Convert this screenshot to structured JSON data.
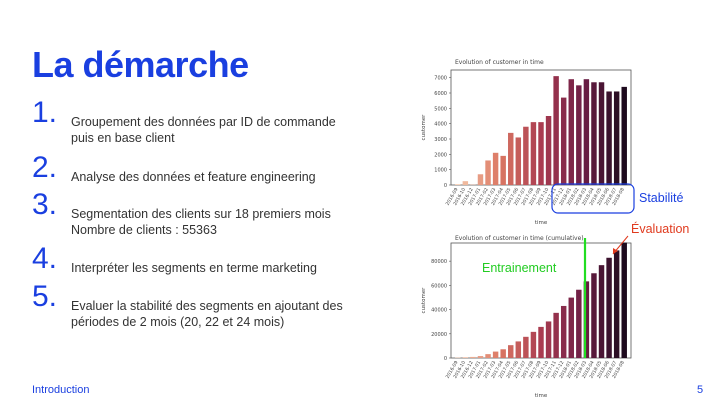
{
  "slide": {
    "title": "La démarche",
    "items": [
      {
        "num": "1.",
        "lines": [
          "Groupement des données par ID de commande",
          "puis en base client"
        ]
      },
      {
        "num": "2.",
        "lines": [
          "Analyse des données et feature engineering"
        ]
      },
      {
        "num": "3.",
        "lines": [
          "Segmentation des clients sur 18 premiers mois",
          "Nombre de clients : 55363"
        ]
      },
      {
        "num": "4.",
        "lines": [
          "Interpréter les segments en terme marketing"
        ]
      },
      {
        "num": "5.",
        "lines": [
          "Evaluer la stabilité des segments en ajoutant des",
          "périodes de 2 mois (20, 22 et 24 mois)"
        ]
      }
    ],
    "footer": {
      "left": "Introduction",
      "page": "5"
    },
    "annotations": {
      "stabilite": "Stabilité",
      "evaluation": "Évaluation",
      "entrainement": "Entrainement"
    },
    "colors": {
      "accent": "#1a3fe0",
      "training_line": "#22dd22",
      "evaluation_text": "#e03a1e",
      "stabilite_box": "#1a3fe0"
    }
  },
  "chart_data": [
    {
      "type": "bar",
      "title": "Evolution of customer in time",
      "xlabel": "time",
      "ylabel": "customer",
      "ylim": [
        0,
        7500
      ],
      "yticks": [
        0,
        1000,
        2000,
        3000,
        4000,
        5000,
        6000,
        7000
      ],
      "categories": [
        "2016-09",
        "2016-10",
        "2016-12",
        "2017-01",
        "2017-02",
        "2017-03",
        "2017-04",
        "2017-05",
        "2017-06",
        "2017-07",
        "2017-08",
        "2017-09",
        "2017-10",
        "2017-11",
        "2017-12",
        "2018-01",
        "2018-02",
        "2018-03",
        "2018-04",
        "2018-05",
        "2018-06",
        "2018-07",
        "2018-08"
      ],
      "values": [
        50,
        250,
        20,
        700,
        1600,
        2100,
        1900,
        3400,
        3100,
        3800,
        4100,
        4100,
        4500,
        7100,
        5700,
        6900,
        6500,
        6900,
        6700,
        6700,
        6100,
        6100,
        6400
      ]
    },
    {
      "type": "bar",
      "title": "Evolution of customer in time (cumulative)",
      "xlabel": "time",
      "ylabel": "customer",
      "ylim": [
        0,
        95000
      ],
      "yticks": [
        0,
        20000,
        40000,
        60000,
        80000
      ],
      "categories": [
        "2016-09",
        "2016-10",
        "2016-12",
        "2017-01",
        "2017-02",
        "2017-03",
        "2017-04",
        "2017-05",
        "2017-06",
        "2017-07",
        "2017-08",
        "2017-09",
        "2017-10",
        "2017-11",
        "2017-12",
        "2018-01",
        "2018-02",
        "2018-03",
        "2018-04",
        "2018-05",
        "2018-06",
        "2018-07",
        "2018-08"
      ],
      "values": [
        300,
        600,
        900,
        1600,
        3200,
        5300,
        7200,
        10600,
        13700,
        17500,
        21600,
        25700,
        30200,
        37300,
        43000,
        49900,
        56400,
        63300,
        70000,
        76700,
        82800,
        88900,
        95300
      ]
    }
  ]
}
